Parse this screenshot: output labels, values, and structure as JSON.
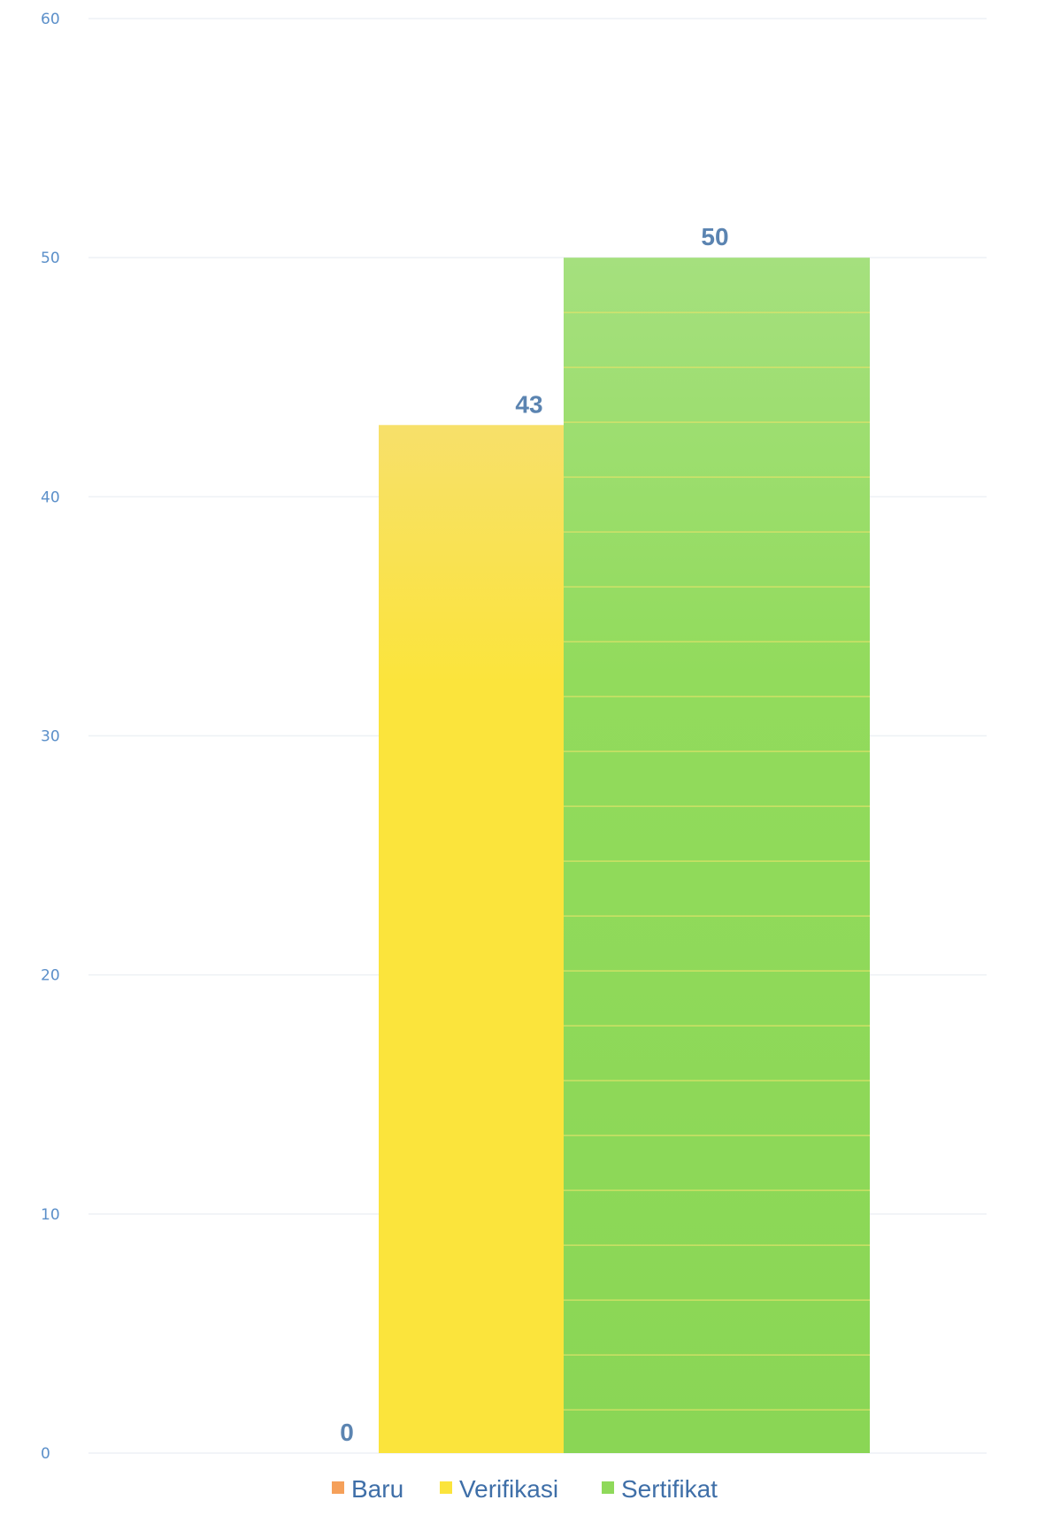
{
  "chart_data": {
    "type": "bar",
    "categories": [
      ""
    ],
    "series": [
      {
        "name": "Baru",
        "values": [
          0
        ],
        "color": "#f5a05a"
      },
      {
        "name": "Verifikasi",
        "values": [
          43
        ],
        "color": "#fbe43c"
      },
      {
        "name": "Sertifikat",
        "values": [
          50
        ],
        "color": "#8fd95a"
      }
    ],
    "data_labels": [
      "0",
      "43",
      "50"
    ],
    "ylim": [
      0,
      60
    ],
    "yticks": [
      "0",
      "10",
      "20",
      "30",
      "40",
      "50",
      "60"
    ],
    "grid": true,
    "legend": "bottom",
    "title": "",
    "xlabel": "",
    "ylabel": ""
  }
}
